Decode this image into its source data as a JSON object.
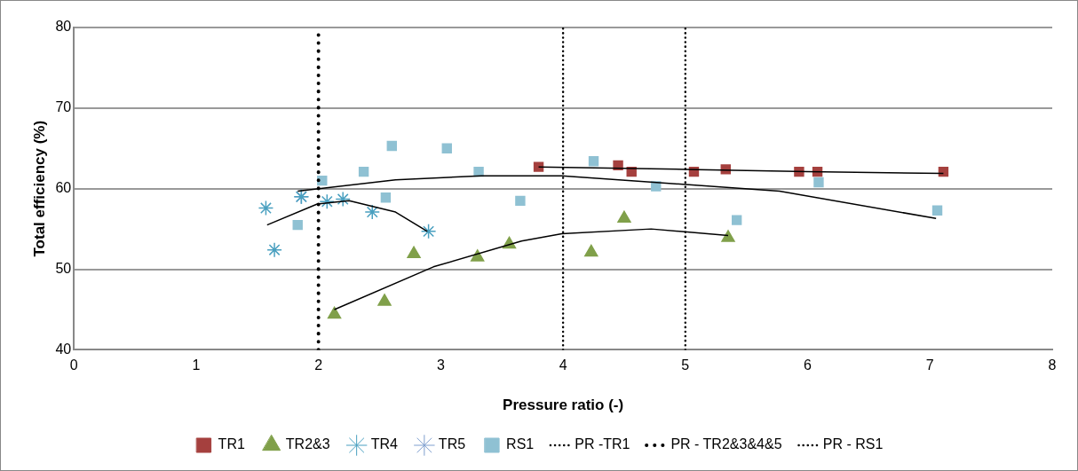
{
  "chart_data": {
    "type": "scatter",
    "xlabel": "Pressure ratio (-)",
    "ylabel": "Total efficiency (%)",
    "xlim": [
      0,
      8
    ],
    "xticks": [
      0,
      1,
      2,
      3,
      4,
      5,
      6,
      7,
      8
    ],
    "ylim": [
      40,
      80
    ],
    "yticks": [
      40,
      50,
      60,
      70,
      80
    ],
    "grid": "y",
    "legend": "bottom",
    "series": [
      {
        "name": "TR1",
        "color": "#a5403e",
        "marker": "square",
        "x": [
          3.8,
          4.45,
          4.56,
          5.07,
          5.33,
          5.93,
          6.08,
          7.11
        ],
        "values": [
          62.7,
          62.9,
          62.1,
          62.1,
          62.4,
          62.1,
          62.1,
          62.1
        ]
      },
      {
        "name": "TR2&3",
        "color": "#80a04a",
        "marker": "triangle",
        "x": [
          2.13,
          2.54,
          2.78,
          3.3,
          3.56,
          4.23,
          4.5,
          5.35
        ],
        "values": [
          44.4,
          46.0,
          51.9,
          51.5,
          53.1,
          52.1,
          56.3,
          53.9
        ]
      },
      {
        "name": "TR4",
        "color": "#4aa0c0",
        "marker": "cross",
        "x": [
          1.57,
          1.64,
          1.86,
          2.07,
          2.2,
          2.44,
          2.9
        ],
        "values": [
          57.6,
          52.4,
          59.0,
          58.4,
          58.7,
          57.1,
          54.7
        ]
      },
      {
        "name": "TR5",
        "color": "#7f9fcf",
        "marker": "cross",
        "x": [
          1.86
        ],
        "values": [
          59.0
        ]
      },
      {
        "name": "RS1",
        "color": "#8fc1d3",
        "marker": "square",
        "x": [
          1.83,
          2.03,
          2.37,
          2.6,
          2.55,
          3.05,
          3.31,
          3.65,
          4.25,
          4.76,
          5.42,
          6.09,
          7.06
        ],
        "values": [
          55.5,
          61.0,
          62.1,
          65.3,
          58.9,
          65.0,
          62.1,
          58.5,
          63.4,
          60.3,
          56.1,
          60.8,
          57.3
        ]
      },
      {
        "type": "line",
        "color": "#000000",
        "marker": "none",
        "x": [
          3.8,
          5.0,
          6.0,
          7.11
        ],
        "values": [
          62.7,
          62.4,
          62.1,
          61.9
        ]
      },
      {
        "type": "line",
        "color": "#000000",
        "marker": "none",
        "x": [
          2.13,
          2.94,
          3.66,
          3.99,
          4.72,
          5.35
        ],
        "values": [
          45.0,
          50.3,
          53.5,
          54.4,
          55.0,
          54.2
        ]
      },
      {
        "type": "line",
        "color": "#000000",
        "marker": "none",
        "x": [
          1.58,
          1.99,
          2.25,
          2.63,
          2.89
        ],
        "values": [
          55.5,
          58.1,
          58.5,
          57.1,
          54.7
        ]
      },
      {
        "type": "line",
        "color": "#000000",
        "marker": "none",
        "x": [
          1.83,
          2.63,
          3.33,
          3.99,
          4.74,
          5.77,
          7.05
        ],
        "values": [
          59.7,
          61.1,
          61.6,
          61.6,
          60.8,
          59.7,
          56.3
        ]
      }
    ],
    "ref_lines": [
      {
        "axis": "x",
        "value": 4,
        "label": "PR -TR1",
        "color": "#000000",
        "line_style": "dotted"
      },
      {
        "axis": "x",
        "value": 2,
        "label": "PR - TR2&3&4&5",
        "color": "#000000",
        "line_style": "dotted"
      },
      {
        "axis": "x",
        "value": 5,
        "label": "PR - RS1",
        "color": "#000000",
        "line_style": "dotted"
      }
    ]
  }
}
